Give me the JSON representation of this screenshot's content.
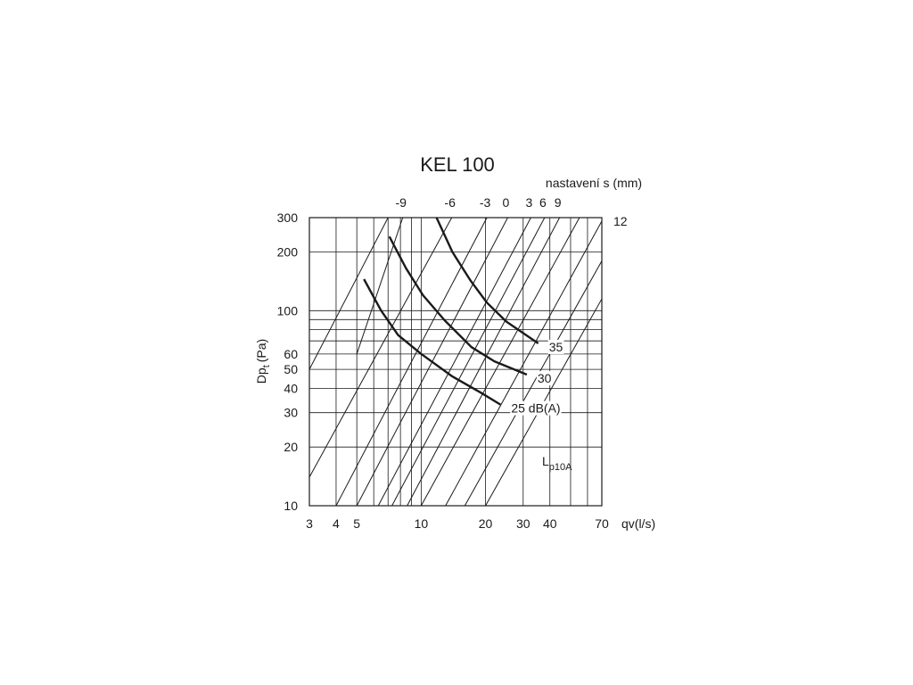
{
  "chart_data": {
    "type": "line",
    "title": "KEL 100",
    "xlabel": "qv(l/s)",
    "ylabel": "Dp",
    "ylabel_sub": "t",
    "ylabel_unit": "(Pa)",
    "x_scale": "log",
    "y_scale": "log",
    "xlim": [
      3,
      70
    ],
    "ylim": [
      10,
      300
    ],
    "x_ticks": [
      3,
      4,
      5,
      10,
      20,
      30,
      40,
      70
    ],
    "y_ticks": [
      10,
      20,
      30,
      40,
      50,
      60,
      100,
      200,
      300
    ],
    "grid": true,
    "top_axis_label": "nastavení s (mm)",
    "setting_lines": [
      {
        "label": "-9",
        "points": [
          [
            5.0,
            60
          ],
          [
            8.2,
            300
          ]
        ]
      },
      {
        "label": "-6",
        "points": [
          [
            3.0,
            14
          ],
          [
            13.9,
            300
          ]
        ]
      },
      {
        "label": "-3",
        "points": [
          [
            4.0,
            10
          ],
          [
            20.3,
            300
          ]
        ]
      },
      {
        "label": "0",
        "points": [
          [
            5.0,
            10
          ],
          [
            25.4,
            300
          ]
        ]
      },
      {
        "label": "3",
        "points": [
          [
            6.3,
            10
          ],
          [
            32.6,
            300
          ]
        ]
      },
      {
        "label": "6",
        "points": [
          [
            7.3,
            10
          ],
          [
            37.8,
            300
          ]
        ]
      },
      {
        "label": "9",
        "points": [
          [
            8.6,
            10
          ],
          [
            44.4,
            300
          ]
        ]
      },
      {
        "label": "12",
        "points": [
          [
            13.0,
            10
          ],
          [
            70.0,
            288
          ]
        ]
      },
      {
        "label": "",
        "points": [
          [
            3.0,
            50
          ],
          [
            7.0,
            300
          ]
        ]
      },
      {
        "label": "",
        "points": [
          [
            10.0,
            10
          ],
          [
            55.0,
            300
          ]
        ]
      },
      {
        "label": "",
        "points": [
          [
            16.0,
            10
          ],
          [
            70.0,
            180
          ]
        ]
      },
      {
        "label": "",
        "points": [
          [
            20.0,
            10
          ],
          [
            70.0,
            115
          ]
        ]
      }
    ],
    "noise_series": [
      {
        "name": "35",
        "points": [
          [
            11.8,
            300
          ],
          [
            14.0,
            200
          ],
          [
            17.0,
            143
          ],
          [
            20.3,
            110
          ],
          [
            25.0,
            88
          ],
          [
            35.3,
            68
          ]
        ]
      },
      {
        "name": "30",
        "points": [
          [
            7.1,
            240
          ],
          [
            8.5,
            165
          ],
          [
            10.2,
            120
          ],
          [
            12.9,
            89
          ],
          [
            17.2,
            65
          ],
          [
            22.0,
            55
          ],
          [
            31.2,
            47
          ]
        ]
      },
      {
        "name": "25 dB(A)",
        "points": [
          [
            5.4,
            145
          ],
          [
            6.5,
            100
          ],
          [
            7.8,
            75
          ],
          [
            10.0,
            60
          ],
          [
            14.0,
            46
          ],
          [
            19.0,
            38
          ],
          [
            23.5,
            33
          ]
        ]
      }
    ],
    "annotation_main": "L",
    "annotation_sub": "p10A",
    "series_labels": [
      "35",
      "30",
      "25 dB(A)"
    ]
  }
}
